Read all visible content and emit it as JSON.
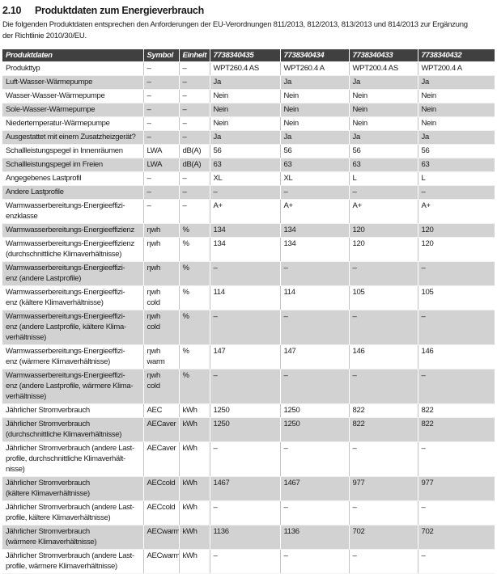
{
  "page": {
    "section_number": "2.10",
    "title": "Produktdaten zum Energieverbrauch",
    "intro": "Die folgenden Produktdaten entsprechen den Anforderungen der EU-Verordnungen 811/2013, 812/2013, 813/2013 und 814/2013 zur Ergänzung\nder Richtlinie 2010/30/EU."
  },
  "colors": {
    "header_bg": "#404040",
    "header_text": "#ffffff",
    "shaded_row_bg": "#d2d2d2",
    "body_text": "#1a1a1a"
  },
  "table": {
    "columns": [
      "Produktdaten",
      "Symbol",
      "Einheit",
      "7738340435",
      "7738340434",
      "7738340433",
      "7738340432"
    ],
    "rows": [
      {
        "label": "Produkttyp",
        "symbol": "–",
        "unit": "–",
        "values": [
          "WPT260.4 AS",
          "WPT260.4 A",
          "WPT200.4 AS",
          "WPT200.4 A"
        ]
      },
      {
        "label": "Luft-Wasser-Wärmepumpe",
        "symbol": "–",
        "unit": "–",
        "values": [
          "Ja",
          "Ja",
          "Ja",
          "Ja"
        ]
      },
      {
        "label": "Wasser-Wasser-Wärmepumpe",
        "symbol": "–",
        "unit": "–",
        "values": [
          "Nein",
          "Nein",
          "Nein",
          "Nein"
        ]
      },
      {
        "label": "Sole-Wasser-Wärmepumpe",
        "symbol": "–",
        "unit": "–",
        "values": [
          "Nein",
          "Nein",
          "Nein",
          "Nein"
        ]
      },
      {
        "label": "Niedertemperatur-Wärmepumpe",
        "symbol": "–",
        "unit": "–",
        "values": [
          "Nein",
          "Nein",
          "Nein",
          "Nein"
        ]
      },
      {
        "label": "Ausgestattet mit einem Zusatzheizgerät?",
        "symbol": "–",
        "unit": "–",
        "values": [
          "Ja",
          "Ja",
          "Ja",
          "Ja"
        ]
      },
      {
        "label": "Schallleistungspegel in Innenräumen",
        "symbol": "LWA",
        "unit": "dB(A)",
        "values": [
          "56",
          "56",
          "56",
          "56"
        ]
      },
      {
        "label": "Schallleistungspegel im Freien",
        "symbol": "LWA",
        "unit": "dB(A)",
        "values": [
          "63",
          "63",
          "63",
          "63"
        ]
      },
      {
        "label": "Angegebenes Lastprofil",
        "symbol": "–",
        "unit": "–",
        "values": [
          "XL",
          "XL",
          "L",
          "L"
        ]
      },
      {
        "label": "Andere Lastprofile",
        "symbol": "–",
        "unit": "–",
        "values": [
          "–",
          "–",
          "–",
          "–"
        ]
      },
      {
        "label": "Warmwasserbereitungs-Energieeffizi-\nenzklasse",
        "symbol": "–",
        "unit": "–",
        "values": [
          "A+",
          "A+",
          "A+",
          "A+"
        ]
      },
      {
        "label": "Warmwasserbereitungs-Energieeffizienz",
        "symbol": "ηwh",
        "unit": "%",
        "values": [
          "134",
          "134",
          "120",
          "120"
        ]
      },
      {
        "label": "Warmwasserbereitungs-Energieeffizienz\n(durchschnittliche Klimaverhältnisse)",
        "symbol": "ηwh",
        "unit": "%",
        "values": [
          "134",
          "134",
          "120",
          "120"
        ]
      },
      {
        "label": "Warmwasserbereitungs-Energieeffizi-\nenz (andere Lastprofile)",
        "symbol": "ηwh",
        "unit": "%",
        "values": [
          "–",
          "–",
          "–",
          "–"
        ]
      },
      {
        "label": "Warmwasserbereitungs-Energieeffizi-\nenz (kältere Klimaverhältnisse)",
        "symbol": "ηwh cold",
        "unit": "%",
        "values": [
          "114",
          "114",
          "105",
          "105"
        ]
      },
      {
        "label": "Warmwasserbereitungs-Energieeffizi-\nenz (andere Lastprofile, kältere Klima-\nverhältnisse)",
        "symbol": "ηwh cold",
        "unit": "%",
        "values": [
          "–",
          "–",
          "–",
          "–"
        ]
      },
      {
        "label": "Warmwasserbereitungs-Energieeffizi-\nenz (wärmere Klimaverhältnisse)",
        "symbol": "ηwh warm",
        "unit": "%",
        "values": [
          "147",
          "147",
          "146",
          "146"
        ]
      },
      {
        "label": "Warmwasserbereitungs-Energieeffizi-\nenz (andere Lastprofile, wärmere Klima-\nverhältnisse)",
        "symbol": "ηwh cold",
        "unit": "%",
        "values": [
          "–",
          "–",
          "–",
          "–"
        ]
      },
      {
        "label": "Jährlicher Stromverbrauch",
        "symbol": "AEC",
        "unit": "kWh",
        "values": [
          "1250",
          "1250",
          "822",
          "822"
        ]
      },
      {
        "label": "Jährlicher Stromverbrauch\n(durchschnittliche Klimaverhältnisse)",
        "symbol": "AECaver",
        "unit": "kWh",
        "values": [
          "1250",
          "1250",
          "822",
          "822"
        ]
      },
      {
        "label": "Jährlicher Stromverbrauch (andere Last-\nprofile, durchschnittliche Klimaverhält-\nnisse)",
        "symbol": "AECaver",
        "unit": "kWh",
        "values": [
          "–",
          "–",
          "–",
          "–"
        ]
      },
      {
        "label": "Jährlicher Stromverbrauch\n(kältere Klimaverhältnisse)",
        "symbol": "AECcold",
        "unit": "kWh",
        "values": [
          "1467",
          "1467",
          "977",
          "977"
        ]
      },
      {
        "label": "Jährlicher Stromverbrauch (andere Last-\nprofile, kältere Klimaverhältnisse)",
        "symbol": "AECcold",
        "unit": "kWh",
        "values": [
          "–",
          "–",
          "–",
          "–"
        ]
      },
      {
        "label": "Jährlicher Stromverbrauch\n(wärmere Klimaverhältnisse)",
        "symbol": "AECwarm",
        "unit": "kWh",
        "values": [
          "1136",
          "1136",
          "702",
          "702"
        ]
      },
      {
        "label": "Jährlicher Stromverbrauch (andere Last-\nprofile, wärmere Klimaverhältnisse)",
        "symbol": "AECwarm",
        "unit": "kWh",
        "values": [
          "–",
          "–",
          "–",
          "–"
        ]
      }
    ]
  }
}
